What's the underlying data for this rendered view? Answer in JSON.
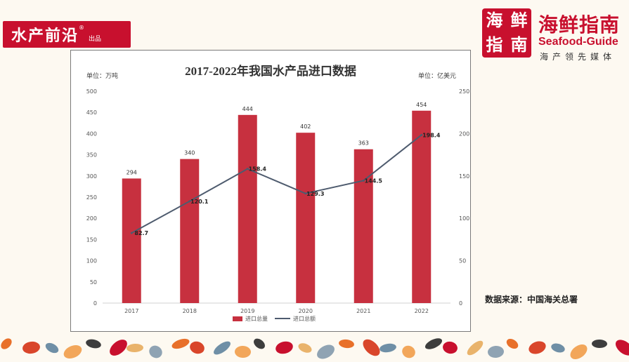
{
  "brand_left": {
    "main": "水产前沿",
    "sub": "出品",
    "reg": "®"
  },
  "logo": {
    "seal_chars": [
      "海",
      "鲜",
      "指",
      "南"
    ],
    "title": "海鲜指南",
    "subtitle_en": "Seafood-Guide",
    "tagline": "海产领先媒体"
  },
  "source_note": "数据来源：中国海关总署",
  "colors": {
    "bar": "#c7303f",
    "line": "#4e5b6e",
    "brand_red": "#c8102e"
  },
  "decoration_icons": [
    "shrimp-icon",
    "fish-icon",
    "lobster-icon",
    "octopus-icon",
    "salmon-icon",
    "clam-icon",
    "squid-icon",
    "crab-icon"
  ],
  "chart_data": {
    "type": "bar",
    "title": "2017-2022年我国水产品进口数据",
    "left_unit": "单位：万吨",
    "right_unit": "单位：亿美元",
    "categories": [
      "2017",
      "2018",
      "2019",
      "2020",
      "2021",
      "2022"
    ],
    "series": [
      {
        "name": "进口总量",
        "type": "bar",
        "axis": "left",
        "values": [
          294,
          340,
          444,
          402,
          363,
          454
        ]
      },
      {
        "name": "进口总额",
        "type": "line",
        "axis": "right",
        "values": [
          82.7,
          120.1,
          158.4,
          129.3,
          144.5,
          198.4
        ]
      }
    ],
    "ylim_left": [
      0,
      500
    ],
    "yticks_left": [
      0,
      50,
      100,
      150,
      200,
      250,
      300,
      350,
      400,
      450,
      500
    ],
    "ylim_right": [
      0,
      250
    ],
    "yticks_right": [
      0,
      50,
      100,
      150,
      200,
      250
    ],
    "grid": false,
    "legend": "bottom-center"
  }
}
